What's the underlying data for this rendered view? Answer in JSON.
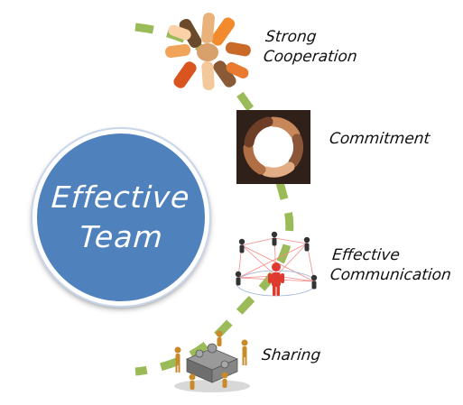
{
  "center": {
    "line1": "Effective",
    "line2": "Team"
  },
  "items": [
    {
      "label_lines": [
        "Strong",
        "Cooperation"
      ],
      "icon": "hands-together-icon"
    },
    {
      "label_lines": [
        "Commitment"
      ],
      "icon": "hands-circle-icon"
    },
    {
      "label_lines": [
        "Effective",
        "Communication"
      ],
      "icon": "people-network-icon"
    },
    {
      "label_lines": [
        "Sharing"
      ],
      "icon": "puzzle-people-icon"
    }
  ],
  "colors": {
    "circle": "#4f81bd",
    "connector": "#9bbb59",
    "highlight_person": "#e03a2f"
  }
}
